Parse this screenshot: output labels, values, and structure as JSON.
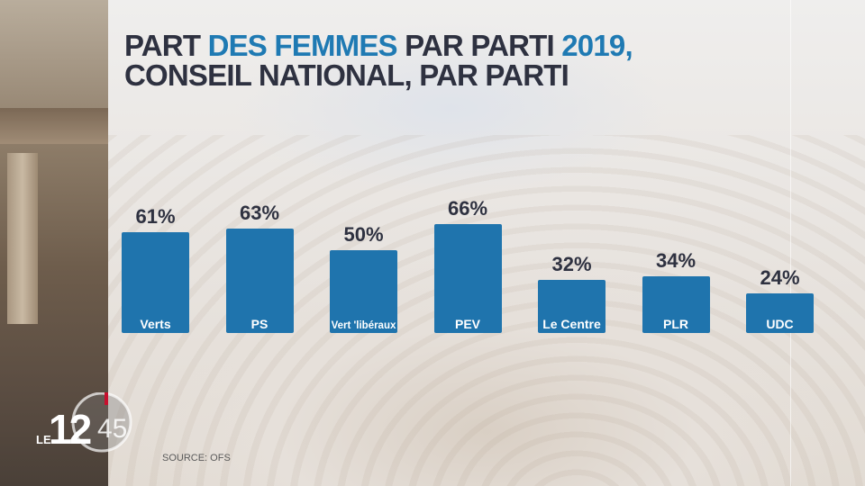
{
  "chart_data": {
    "type": "bar",
    "title": [
      "PART ",
      "DES FEMMES",
      " PAR PARTI ",
      "2019,",
      "CONSEIL NATIONAL, PAR PARTI"
    ],
    "categories": [
      "Verts",
      "PS",
      "Vert 'libéraux",
      "PEV",
      "Le Centre",
      "PLR",
      "UDC"
    ],
    "values": [
      61,
      63,
      50,
      66,
      32,
      34,
      24
    ],
    "value_labels": [
      "61%",
      "63%",
      "50%",
      "66%",
      "32%",
      "34%",
      "24%"
    ],
    "unit": "%",
    "ylim": [
      0,
      100
    ],
    "grid": false,
    "colors": {
      "bar": "#1f74ad",
      "title": "#2e3140",
      "highlight": "#1f7ab3"
    }
  },
  "source": "SOURCE: OFS",
  "logo": {
    "text_le": "LE",
    "text_12": "12",
    "text_45": "45",
    "accent": "#c8102e"
  }
}
